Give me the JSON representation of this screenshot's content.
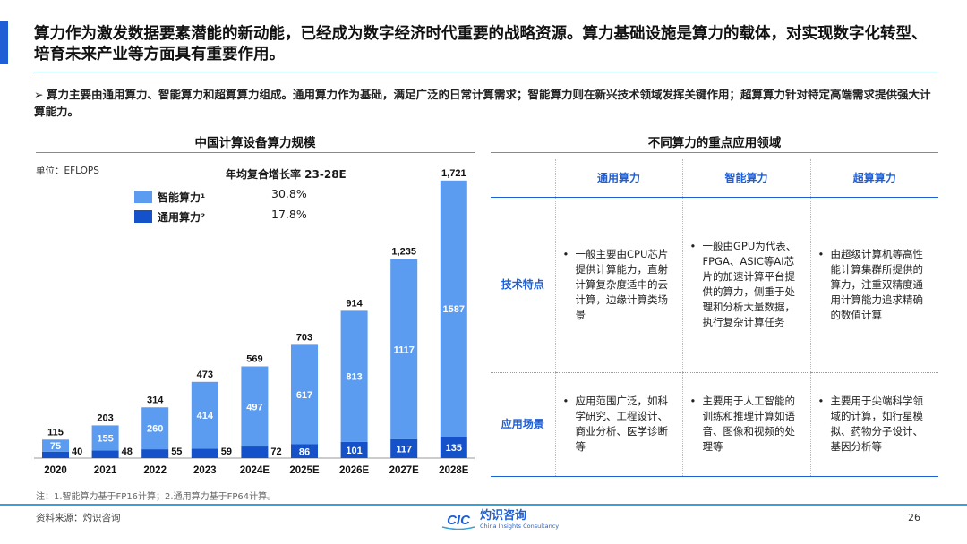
{
  "header": {
    "title": "算力作为激发数据要素潜能的新动能，已经成为数字经济时代重要的战略资源。算力基础设施是算力的载体，对实现数字化转型、培育未来产业等方面具有重要作用。"
  },
  "bullet": {
    "marker": "➢",
    "text": "算力主要由通用算力、智能算力和超算算力组成。通用算力作为基础，满足广泛的日常计算需求；智能算力则在新兴技术领域发挥关键作用；超算算力针对特定高端需求提供强大计算能力。"
  },
  "left_panel": {
    "title": "中国计算设备算力规模",
    "unit": "单位：EFLOPS",
    "cagr_title": "年均复合增长率 23-28E",
    "legend": [
      {
        "label": "智能算力¹",
        "cagr": "30.8%",
        "color": "#5b9bf0"
      },
      {
        "label": "通用算力²",
        "cagr": "17.8%",
        "color": "#1552c9"
      }
    ]
  },
  "chart_data": {
    "type": "bar",
    "stacked": true,
    "categories": [
      "2020",
      "2021",
      "2022",
      "2023",
      "2024E",
      "2025E",
      "2026E",
      "2027E",
      "2028E"
    ],
    "series": [
      {
        "name": "通用算力²",
        "values": [
          40,
          48,
          55,
          59,
          72,
          86,
          101,
          117,
          135
        ],
        "color": "#1552c9"
      },
      {
        "name": "智能算力¹",
        "values": [
          75,
          155,
          260,
          414,
          497,
          617,
          813,
          1117,
          1587
        ],
        "color": "#5b9bf0"
      }
    ],
    "totals": [
      "115",
      "203",
      "314",
      "473",
      "569",
      "703",
      "914",
      "1,235",
      "1,721"
    ],
    "ymax": 1721,
    "legend_placement": "top-left",
    "grid": false
  },
  "right_panel": {
    "title": "不同算力的重点应用领域",
    "columns": [
      "通用算力",
      "智能算力",
      "超算算力"
    ],
    "rows": [
      {
        "header": "技术特点",
        "cells": [
          "一般主要由CPU芯片提供计算能力，直射计算复杂度适中的云计算，边缘计算类场景",
          "一般由GPU为代表、FPGA、ASIC等AI芯片的加速计算平台提供的算力，侧重于处理和分析大量数据，执行复杂计算任务",
          "由超级计算机等高性能计算集群所提供的算力，注重双精度通用计算能力追求精确的数值计算"
        ]
      },
      {
        "header": "应用场景",
        "cells": [
          "应用范围广泛，如科学研究、工程设计、商业分析、医学诊断等",
          "主要用于人工智能的训练和推理计算如语音、图像和视频的处理等",
          "主要用于尖端科学领域的计算，如行星模拟、药物分子设计、基因分析等"
        ]
      }
    ]
  },
  "footer": {
    "note": "注：1.智能算力基于FP16计算；2.通用算力基于FP64计算。",
    "source": "资料来源：灼识咨询",
    "page": "26",
    "logo_cn": "灼识咨询",
    "logo_en": "China Insights Consultancy",
    "logo_mark": "CIC"
  },
  "colors": {
    "accent": "#1f5fd6",
    "footer_rule": "#3aa0d8"
  }
}
